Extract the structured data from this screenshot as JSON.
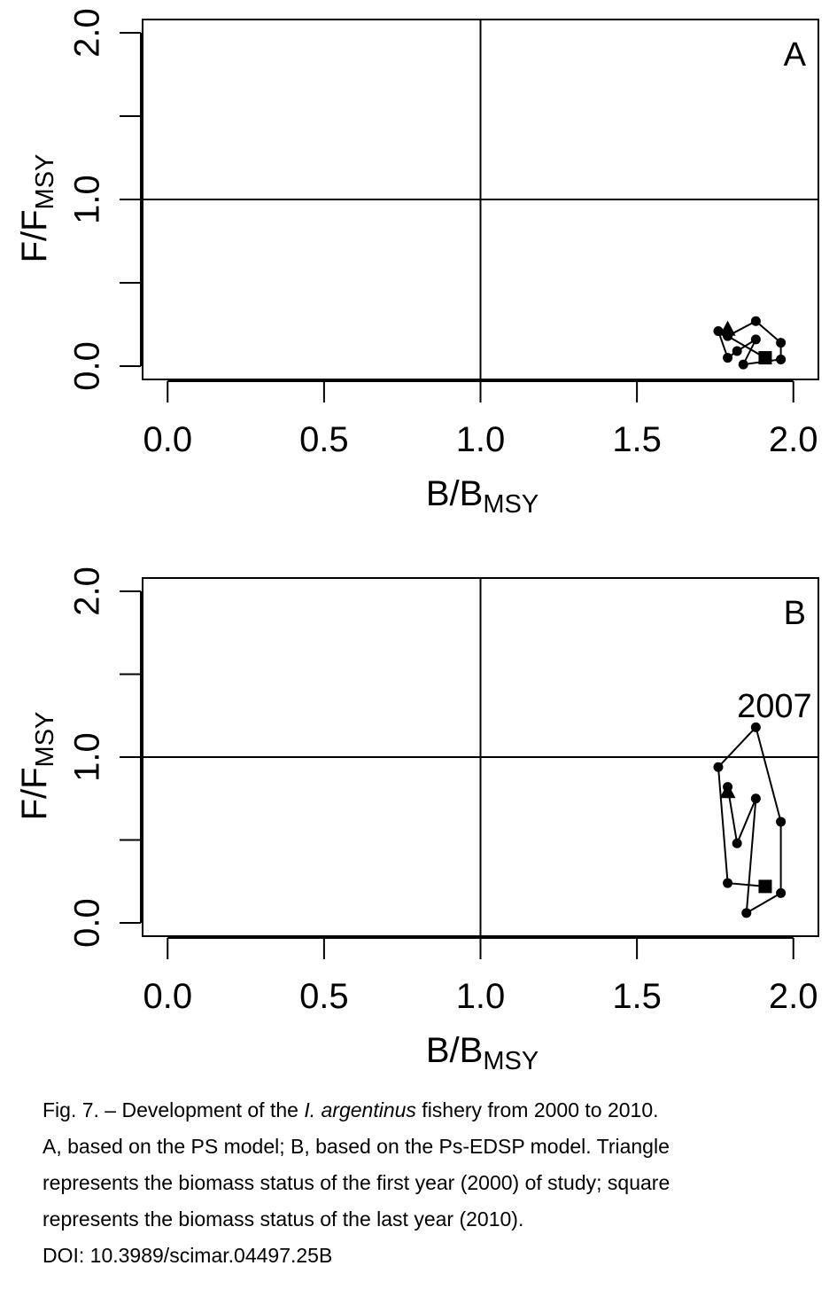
{
  "chart_data": [
    {
      "type": "line",
      "panel_label": "A",
      "xlabel": "B/B",
      "xlabel_sub": "MSY",
      "ylabel": "F/F",
      "ylabel_sub": "MSY",
      "xlim": [
        -0.08,
        2.08
      ],
      "ylim": [
        -0.08,
        2.08
      ],
      "x_ticks": [
        "0.0",
        "0.5",
        "1.0",
        "1.5",
        "2.0"
      ],
      "x_tick_values": [
        0,
        0.5,
        1,
        1.5,
        2
      ],
      "y_ticks": [
        "0.0",
        "1.0",
        "2.0"
      ],
      "y_tick_values": [
        0,
        0.5,
        1,
        1.5,
        2
      ],
      "reference_lines": {
        "x": 1.0,
        "y": 1.0
      },
      "series": [
        {
          "x": [
            1.79,
            1.76,
            1.79,
            1.82,
            1.88,
            1.84,
            1.96,
            1.96,
            1.88,
            1.79,
            1.91
          ],
          "y": [
            0.22,
            0.21,
            0.05,
            0.09,
            0.16,
            0.01,
            0.04,
            0.14,
            0.27,
            0.18,
            0.05
          ]
        }
      ],
      "markers": {
        "first": "triangle",
        "last": "square",
        "others": "circle"
      },
      "annotations": []
    },
    {
      "type": "line",
      "panel_label": "B",
      "xlabel": "B/B",
      "xlabel_sub": "MSY",
      "ylabel": "F/F",
      "ylabel_sub": "MSY",
      "xlim": [
        -0.08,
        2.08
      ],
      "ylim": [
        -0.08,
        2.08
      ],
      "x_ticks": [
        "0.0",
        "0.5",
        "1.0",
        "1.5",
        "2.0"
      ],
      "x_tick_values": [
        0,
        0.5,
        1,
        1.5,
        2
      ],
      "y_ticks": [
        "0.0",
        "1.0",
        "2.0"
      ],
      "y_tick_values": [
        0,
        0.5,
        1,
        1.5,
        2
      ],
      "reference_lines": {
        "x": 1.0,
        "y": 1.0
      },
      "series": [
        {
          "x": [
            1.79,
            1.79,
            1.82,
            1.88,
            1.85,
            1.96,
            1.96,
            1.88,
            1.76,
            1.79,
            1.91
          ],
          "y": [
            0.79,
            0.82,
            0.48,
            0.75,
            0.06,
            0.18,
            0.61,
            1.18,
            0.94,
            0.24,
            0.22
          ]
        }
      ],
      "markers": {
        "first": "triangle",
        "last": "square",
        "others": "circle"
      },
      "annotations": [
        {
          "text": "2007",
          "x": 1.82,
          "y": 1.24
        }
      ]
    }
  ],
  "caption": {
    "line1_pre": "Fig. 7. – Development of the ",
    "line1_italic": "I. argentinus",
    "line1_post": " fishery from 2000 to 2010.",
    "line2": "A, based on the PS model; B, based on the Ps-EDSP model. Triangle",
    "line3": "represents the biomass status of the first year (2000) of study; square",
    "line4": "represents the biomass status of the last year (2010).",
    "line5": "DOI: 10.3989/scimar.04497.25B"
  }
}
